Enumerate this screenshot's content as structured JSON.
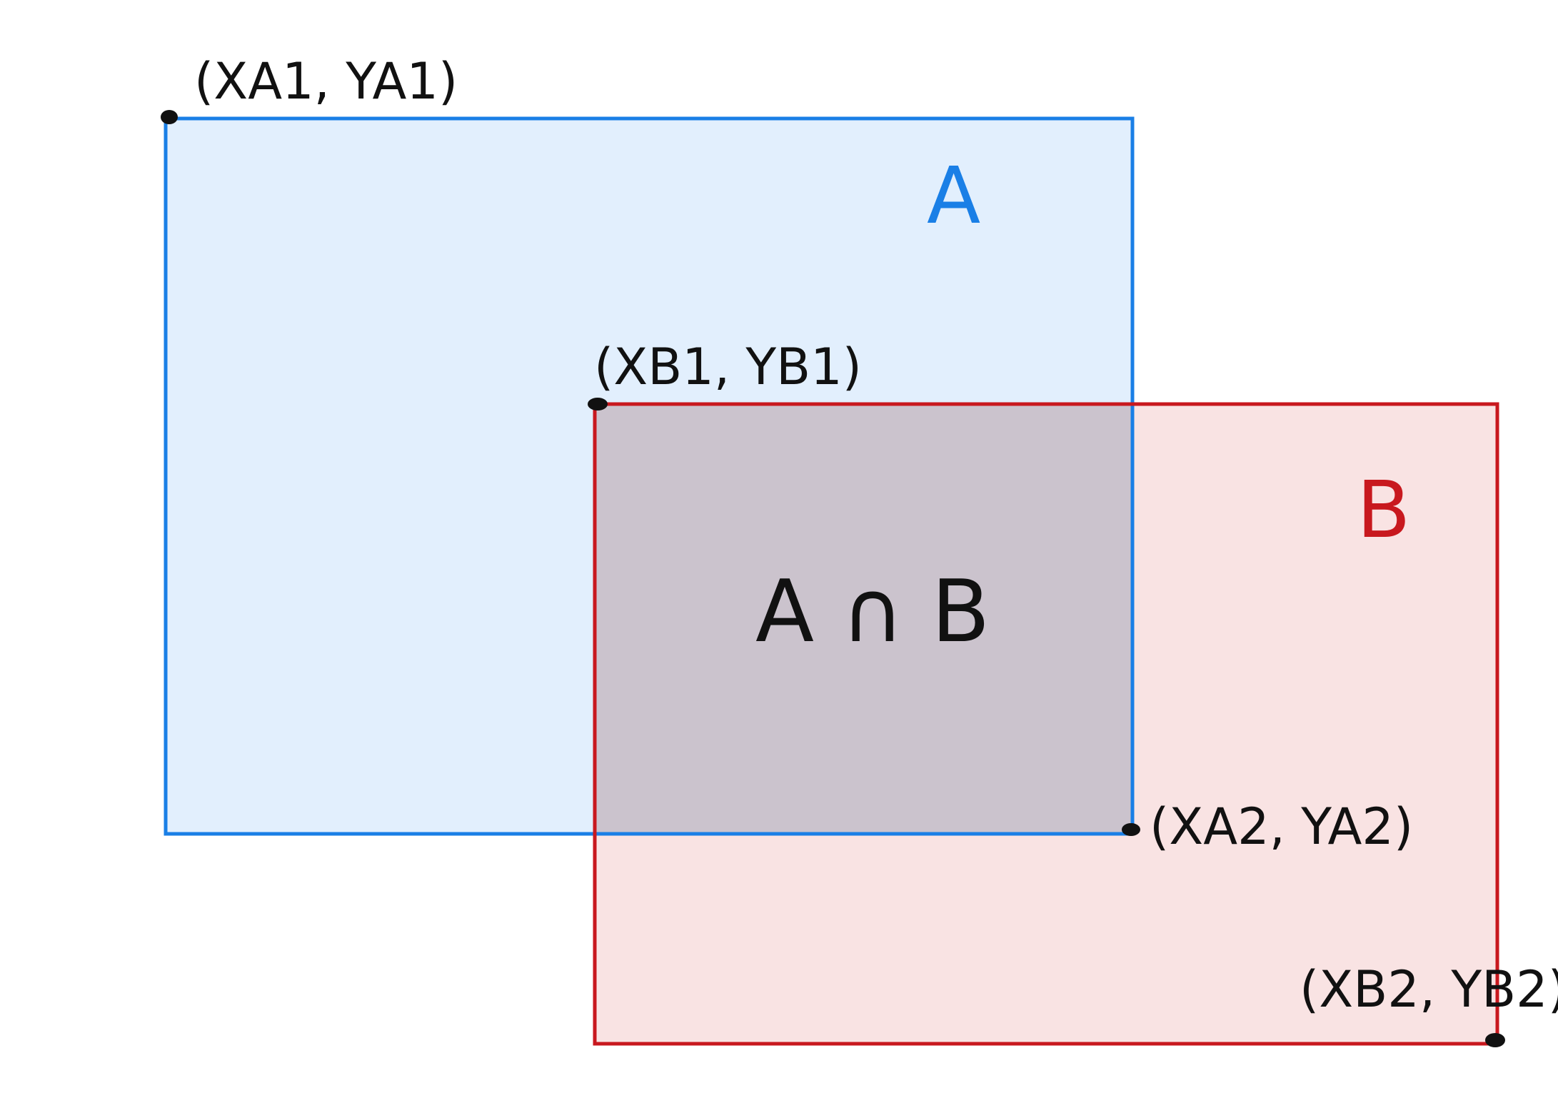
{
  "rectangles": {
    "a": {
      "label": "A",
      "stroke": "#1a7fe6",
      "fill": "#e2effd"
    },
    "b": {
      "label": "B",
      "stroke": "#c8181e",
      "fill": "#f9e3e3"
    },
    "intersection": {
      "label": "A ∩ B",
      "fill": "#cbc3cd"
    }
  },
  "points": {
    "a1": "(XA1, YA1)",
    "b1": "(XB1, YB1)",
    "a2": "(XA2, YA2)",
    "b2": "(XB2, YB2)"
  },
  "colors": {
    "point": "#111111",
    "background": "#ffffff"
  }
}
